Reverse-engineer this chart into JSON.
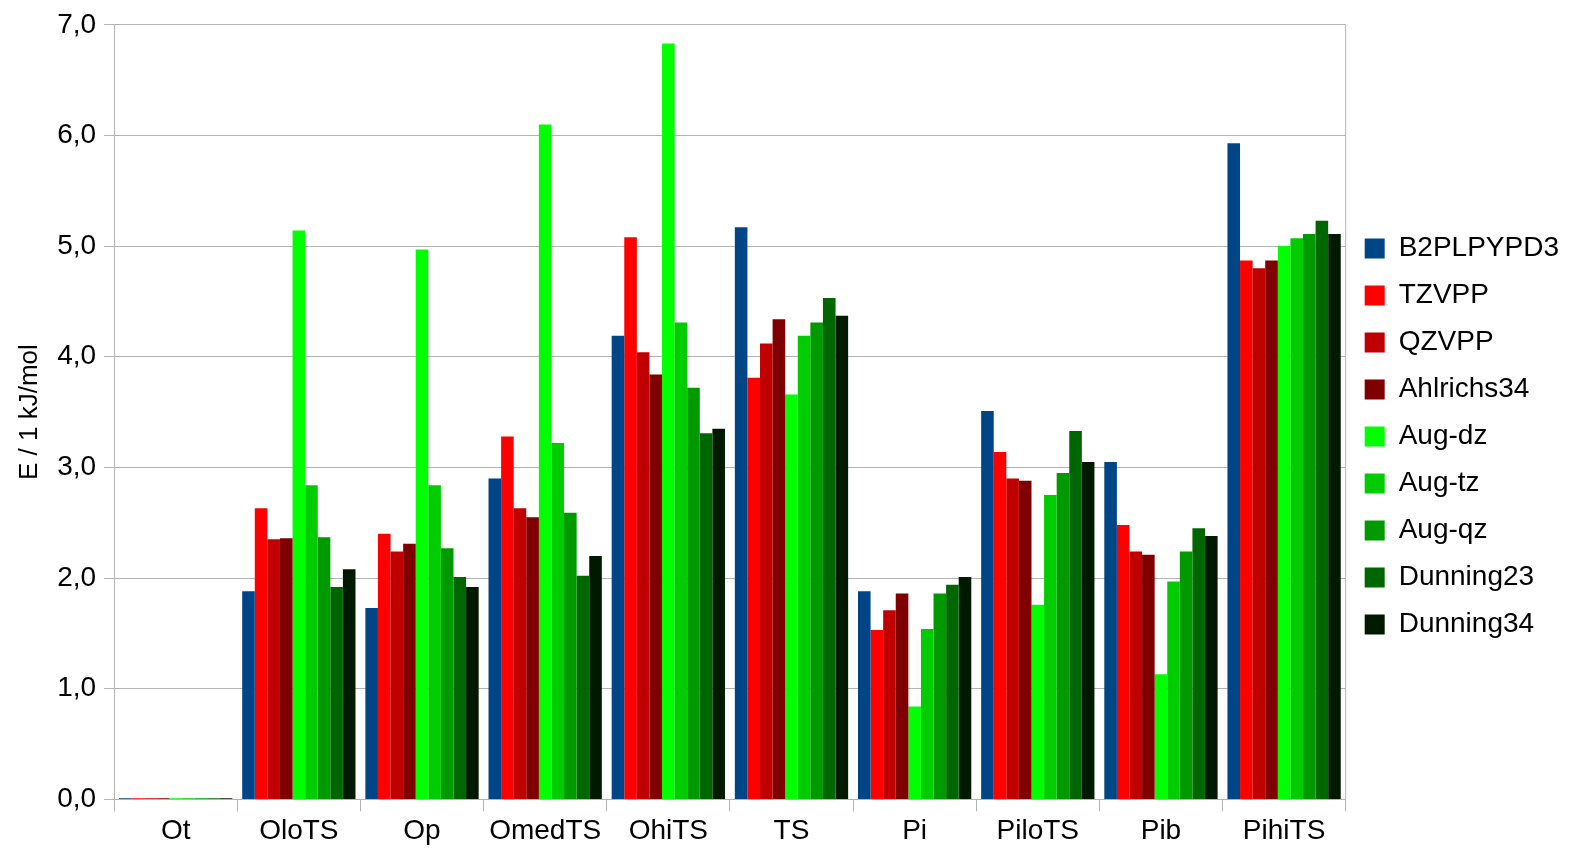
{
  "chart_data": {
    "type": "bar",
    "ylabel": "E / 1 kJ/mol",
    "categories": [
      "Ot",
      "OloTS",
      "Op",
      "OmedTS",
      "OhiTS",
      "TS",
      "Pi",
      "PiloTS",
      "Pib",
      "PihiTS"
    ],
    "series": [
      {
        "name": "B2PLPYPD3",
        "color": "#004586",
        "values": [
          0.01,
          1.88,
          1.73,
          2.9,
          4.19,
          5.17,
          1.88,
          3.51,
          3.05,
          5.93
        ]
      },
      {
        "name": "TZVPP",
        "color": "#ff0000",
        "values": [
          0.01,
          2.63,
          2.4,
          3.28,
          5.08,
          3.81,
          1.53,
          3.14,
          2.48,
          4.87
        ]
      },
      {
        "name": "QZVPP",
        "color": "#c00000",
        "values": [
          0.01,
          2.35,
          2.24,
          2.63,
          4.04,
          4.12,
          1.71,
          2.9,
          2.24,
          4.8
        ]
      },
      {
        "name": "Ahlrichs34",
        "color": "#7e0000",
        "values": [
          0.01,
          2.36,
          2.31,
          2.55,
          3.84,
          4.34,
          1.86,
          2.88,
          2.21,
          4.87
        ]
      },
      {
        "name": "Aug-dz",
        "color": "#00ff00",
        "values": [
          0.01,
          5.14,
          4.97,
          6.1,
          6.83,
          3.66,
          0.84,
          1.76,
          1.13,
          5.0
        ]
      },
      {
        "name": "Aug-tz",
        "color": "#00cc00",
        "values": [
          0.01,
          2.84,
          2.84,
          3.22,
          4.31,
          4.19,
          1.54,
          2.75,
          1.97,
          5.07
        ]
      },
      {
        "name": "Aug-qz",
        "color": "#009900",
        "values": [
          0.01,
          2.37,
          2.27,
          2.59,
          3.72,
          4.31,
          1.86,
          2.95,
          2.24,
          5.11
        ]
      },
      {
        "name": "Dunning23",
        "color": "#006600",
        "values": [
          0.01,
          1.92,
          2.01,
          2.02,
          3.31,
          4.53,
          1.94,
          3.33,
          2.45,
          5.23
        ]
      },
      {
        "name": "Dunning34",
        "color": "#001a00",
        "values": [
          0.01,
          2.08,
          1.92,
          2.2,
          3.35,
          4.37,
          2.01,
          3.05,
          2.38,
          5.11
        ]
      }
    ],
    "ylim": [
      0,
      7
    ],
    "yticks": [
      {
        "value": 0,
        "label": "0,0"
      },
      {
        "value": 1,
        "label": "1,0"
      },
      {
        "value": 2,
        "label": "2,0"
      },
      {
        "value": 3,
        "label": "3,0"
      },
      {
        "value": 4,
        "label": "4,0"
      },
      {
        "value": 5,
        "label": "5,0"
      },
      {
        "value": 6,
        "label": "6,0"
      },
      {
        "value": 7,
        "label": "7,0"
      }
    ],
    "grid": "y",
    "legend": "right"
  }
}
